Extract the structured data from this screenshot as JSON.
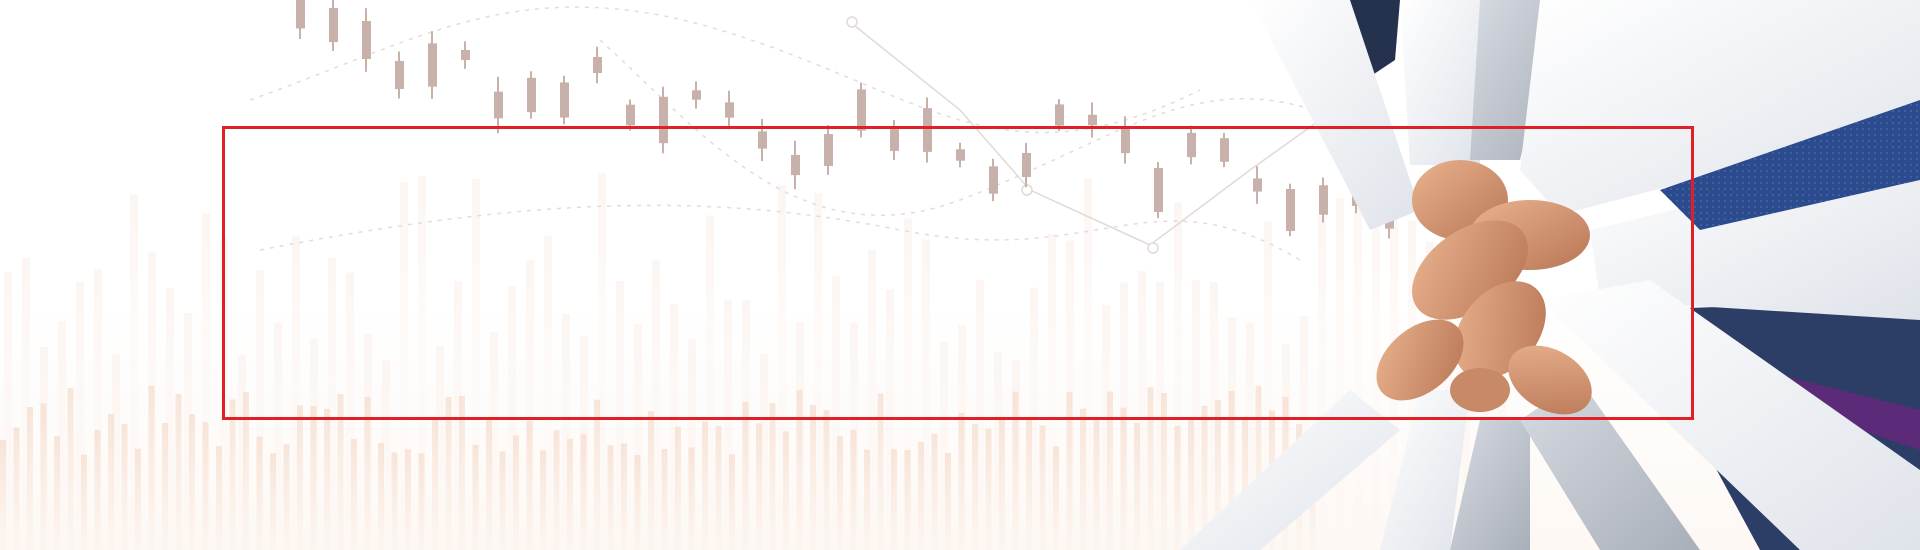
{
  "banner": {
    "image": "business-teamwork-hands-stacked-over-stock-chart",
    "frame_color": "#e01f26",
    "candle_color": "#c7b1aa",
    "volume_color": "#f3d6c3",
    "sleeve_color": "#eef0f3",
    "skin_color": "#d9a17f",
    "tie_colors": [
      "#2b4b8c",
      "#5b2a78"
    ]
  }
}
